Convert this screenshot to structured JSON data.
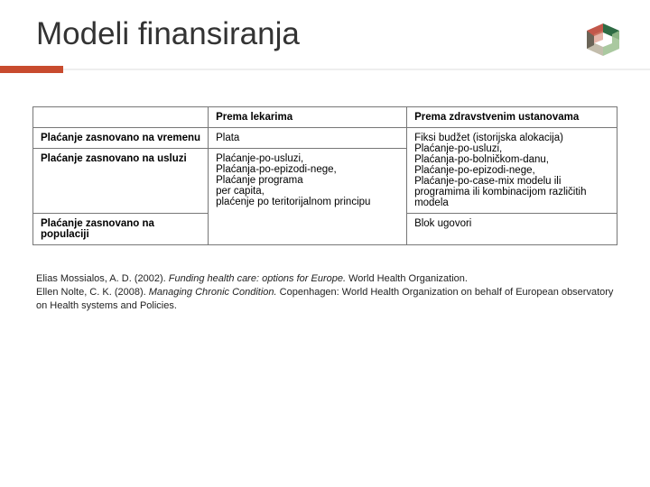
{
  "header": {
    "title": "Modeli finansiranja",
    "logo": {
      "colors": {
        "top_right": "#2e6b44",
        "right": "#9bbf8f",
        "bottom": "#b8b29e",
        "bottom_left": "#6a6457",
        "left": "#c2574a",
        "top_left": "#d3846f"
      }
    },
    "accent_color": "#c84b2e"
  },
  "table": {
    "columns": [
      "",
      "Prema lekarima",
      "Prema zdravstvenim ustanovama"
    ],
    "col_widths_pct": [
      30,
      34,
      36
    ],
    "rows": [
      {
        "label": "Plaćanje zasnovano na vremenu",
        "c1": "Plata",
        "c2": "Fiksi budžet (istorijska alokacija)\nPlaćanje-po-usluzi,\nPlaćanja-po-bolničkom-danu,\nPlaćanje-po-epizodi-nege,\nPlaćanje-po-case-mix modelu ili programima ili kombinacijom različitih modela"
      },
      {
        "label": "Plaćanje zasnovano na usluzi",
        "c1": "Plaćanje-po-usluzi,\nPlaćanja-po-epizodi-nege,\nPlaćanje programa",
        "c2": ""
      },
      {
        "label": "Plaćanje zasnovano na populaciji",
        "c1": "per capita,\nplaćenje po teritorijalnom principu",
        "c2": "Blok ugovori"
      }
    ],
    "border_color": "#777777",
    "font_size_pt": 9
  },
  "citation": {
    "line1_a": "Elias Mossialos, A. D. (2002). ",
    "line1_i": "Funding health care: options for Europe.",
    "line1_b": " World Health Organization.",
    "line2_a": "Ellen Nolte, C. K. (2008). ",
    "line2_i": "Managing Chronic Condition.",
    "line2_b": " Copenhagen: World Health Organization on behalf of European observatory on Health systems and Policies."
  }
}
